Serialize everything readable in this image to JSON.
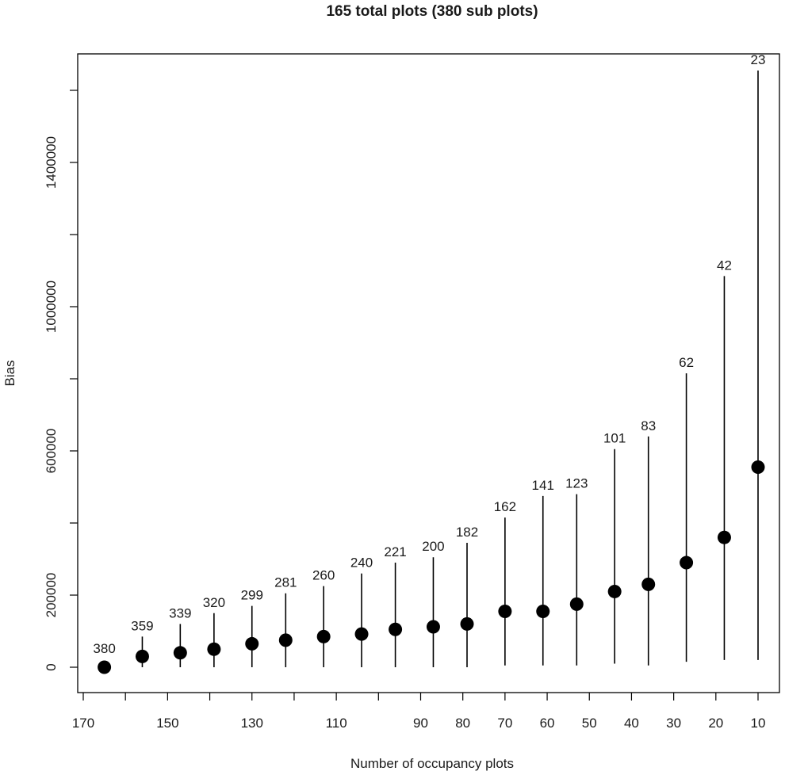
{
  "chart_data": {
    "type": "scatter",
    "title": "165 total plots (380 sub plots)",
    "xlabel": "Number of occupancy plots",
    "ylabel": "Bias",
    "xlim": [
      170,
      10
    ],
    "ylim": [
      0,
      1600000
    ],
    "x_ticks": [
      170,
      150,
      130,
      110,
      90,
      80,
      70,
      60,
      50,
      40,
      30,
      20,
      10
    ],
    "y_tick_labels": [
      0,
      200000,
      600000,
      1000000,
      1400000
    ],
    "y_minor_ticks": [
      0,
      200000,
      400000,
      600000,
      800000,
      1000000,
      1200000,
      1400000,
      1600000
    ],
    "grid": false,
    "legend": "none",
    "marker_color": "#000000",
    "points": [
      {
        "x": 165,
        "y": 0,
        "ylow": 0,
        "yhigh": 0,
        "label": "380"
      },
      {
        "x": 156,
        "y": 30000,
        "ylow": 0,
        "yhigh": 85000,
        "label": "359"
      },
      {
        "x": 147,
        "y": 40000,
        "ylow": 0,
        "yhigh": 120000,
        "label": "339"
      },
      {
        "x": 139,
        "y": 50000,
        "ylow": 0,
        "yhigh": 150000,
        "label": "320"
      },
      {
        "x": 130,
        "y": 65000,
        "ylow": 0,
        "yhigh": 170000,
        "label": "299"
      },
      {
        "x": 122,
        "y": 75000,
        "ylow": 0,
        "yhigh": 205000,
        "label": "281"
      },
      {
        "x": 113,
        "y": 85000,
        "ylow": 0,
        "yhigh": 225000,
        "label": "260"
      },
      {
        "x": 104,
        "y": 92000,
        "ylow": 0,
        "yhigh": 260000,
        "label": "240"
      },
      {
        "x": 96,
        "y": 105000,
        "ylow": 0,
        "yhigh": 290000,
        "label": "221"
      },
      {
        "x": 87,
        "y": 112000,
        "ylow": 0,
        "yhigh": 305000,
        "label": "200"
      },
      {
        "x": 79,
        "y": 120000,
        "ylow": 0,
        "yhigh": 345000,
        "label": "182"
      },
      {
        "x": 70,
        "y": 155000,
        "ylow": 5000,
        "yhigh": 415000,
        "label": "162"
      },
      {
        "x": 61,
        "y": 155000,
        "ylow": 5000,
        "yhigh": 475000,
        "label": "141"
      },
      {
        "x": 53,
        "y": 175000,
        "ylow": 5000,
        "yhigh": 480000,
        "label": "123"
      },
      {
        "x": 44,
        "y": 210000,
        "ylow": 10000,
        "yhigh": 605000,
        "label": "101"
      },
      {
        "x": 36,
        "y": 230000,
        "ylow": 5000,
        "yhigh": 640000,
        "label": "83"
      },
      {
        "x": 27,
        "y": 290000,
        "ylow": 15000,
        "yhigh": 815000,
        "label": "62"
      },
      {
        "x": 18,
        "y": 360000,
        "ylow": 20000,
        "yhigh": 1085000,
        "label": "42"
      },
      {
        "x": 10,
        "y": 555000,
        "ylow": 20000,
        "yhigh": 1655000,
        "label": "23"
      }
    ]
  }
}
